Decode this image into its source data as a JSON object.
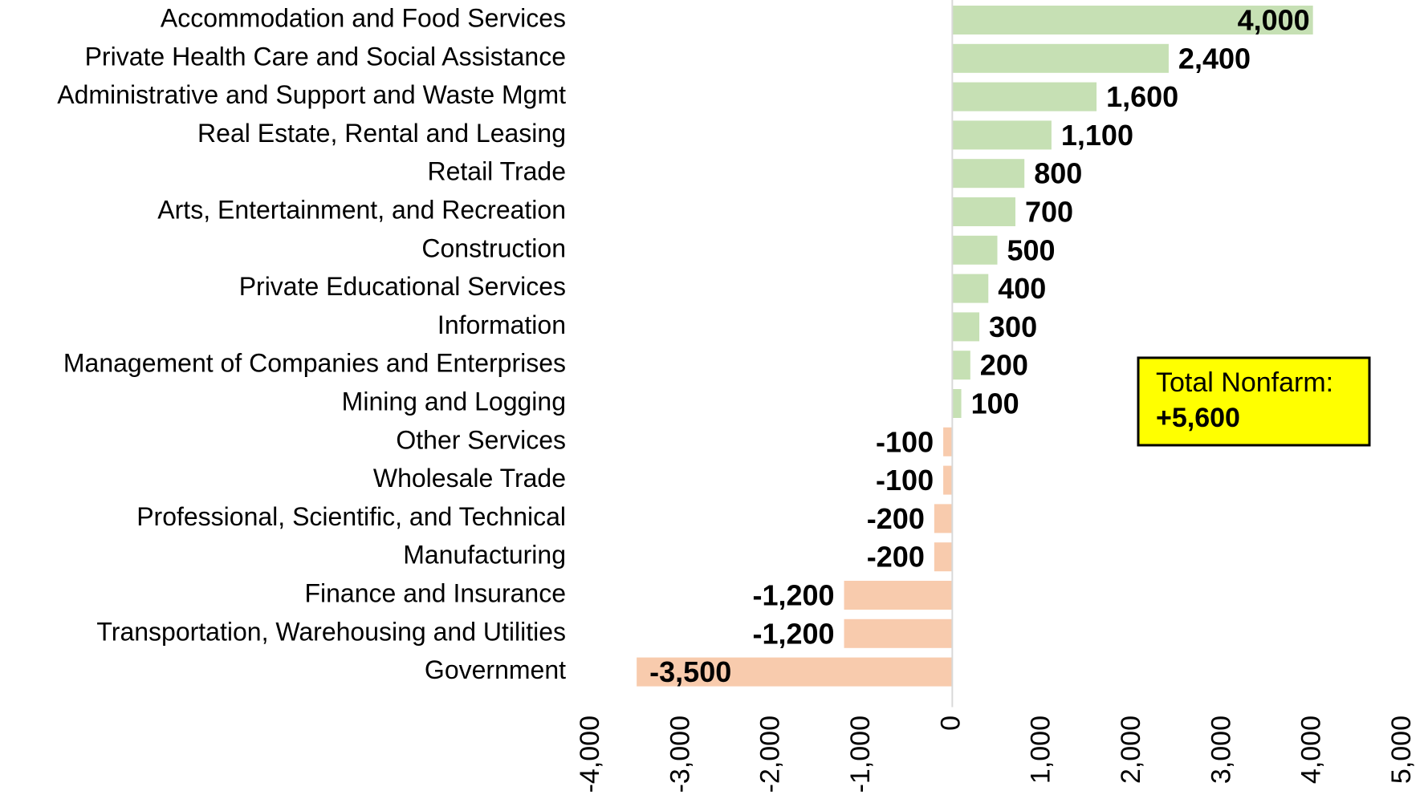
{
  "chart_data": {
    "type": "barh",
    "categories": [
      "Accommodation and Food Services",
      "Private Health Care and Social Assistance",
      "Administrative and Support and Waste Mgmt",
      "Real Estate, Rental and Leasing",
      "Retail Trade",
      "Arts, Entertainment, and Recreation",
      "Construction",
      "Private Educational Services",
      "Information",
      "Management of Companies and Enterprises",
      "Mining and Logging",
      "Other Services",
      "Wholesale Trade",
      "Professional, Scientific, and Technical",
      "Manufacturing",
      "Finance and Insurance",
      "Transportation, Warehousing and Utilities",
      "Government"
    ],
    "values": [
      4000,
      2400,
      1600,
      1100,
      800,
      700,
      500,
      400,
      300,
      200,
      100,
      -100,
      -100,
      -200,
      -200,
      -1200,
      -1200,
      -3500
    ],
    "value_labels": [
      "4,000",
      "2,400",
      "1,600",
      "1,100",
      "800",
      "700",
      "500",
      "400",
      "300",
      "200",
      "100",
      "-100",
      "-100",
      "-200",
      "-200",
      "-1,200",
      "-1,200",
      "-3,500"
    ],
    "positive_color": "#c6e0b4",
    "negative_color": "#f8cbad",
    "xlim": [
      -4000,
      5000
    ],
    "xticks": [
      {
        "value": -4000,
        "label": "-4,000"
      },
      {
        "value": -3000,
        "label": "-3,000"
      },
      {
        "value": -2000,
        "label": "-2,000"
      },
      {
        "value": -1000,
        "label": "-1,000"
      },
      0,
      {
        "value": 1000,
        "label": "1,000"
      },
      {
        "value": 2000,
        "label": "2,000"
      },
      {
        "value": 3000,
        "label": "3,000"
      },
      {
        "value": 4000,
        "label": "4,000"
      },
      {
        "value": 5000,
        "label": "5,000"
      }
    ],
    "grid": false,
    "annotation": {
      "text": "Total Nonfarm:",
      "value": "+5,600",
      "color": "#ffff00"
    }
  }
}
